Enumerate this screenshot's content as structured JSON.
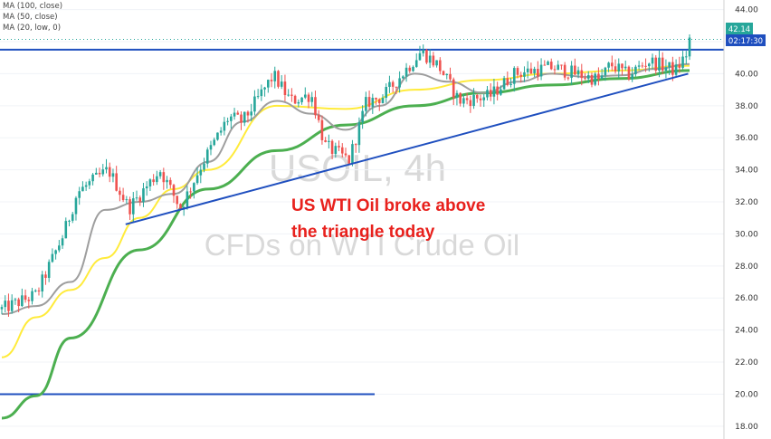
{
  "legend": [
    "MA (100, close)",
    "MA (50, close)",
    "MA (20, low, 0)"
  ],
  "watermark": {
    "symbol": "USOIL, 4h",
    "description": "CFDs on WTI Crude Oil"
  },
  "annotation": {
    "line1": "US WTI Oil broke above",
    "line2": "the triangle today"
  },
  "price_labels": {
    "last_price": "42.14",
    "countdown": "02:17:30"
  },
  "colors": {
    "up_candle": "#26a69a",
    "down_candle": "#ef5350",
    "ma100": "#4caf50",
    "ma50": "#ffeb3b",
    "ma20": "#9e9e9e",
    "trendline": "#1f4fbf",
    "annotation": "#e8211d",
    "axis_badge": "#1f4fbf"
  },
  "chart_data": {
    "type": "candlestick",
    "symbol": "USOIL",
    "timeframe": "4h",
    "ylim": [
      17.2,
      44.6
    ],
    "y_ticks": [
      "18.00",
      "20.00",
      "22.00",
      "24.00",
      "26.00",
      "28.00",
      "30.00",
      "32.00",
      "34.00",
      "36.00",
      "38.00",
      "40.00",
      "42.00",
      "44.00"
    ],
    "horizontal_levels": [
      {
        "name": "resistance",
        "value": 41.5,
        "x_range": [
          0,
          1
        ]
      },
      {
        "name": "support",
        "value": 20.0,
        "x_range": [
          0,
          0.56
        ]
      }
    ],
    "trendline": {
      "from": {
        "x": 0.18,
        "y": 30.6
      },
      "to": {
        "x": 0.998,
        "y": 40.0
      }
    },
    "guide_points": [
      {
        "x": 0.0,
        "y": 25.3
      },
      {
        "x": 0.05,
        "y": 26.2
      },
      {
        "x": 0.09,
        "y": 30.0
      },
      {
        "x": 0.11,
        "y": 32.6
      },
      {
        "x": 0.155,
        "y": 34.0
      },
      {
        "x": 0.185,
        "y": 31.6
      },
      {
        "x": 0.23,
        "y": 34.0
      },
      {
        "x": 0.26,
        "y": 31.6
      },
      {
        "x": 0.29,
        "y": 34.3
      },
      {
        "x": 0.33,
        "y": 37.3
      },
      {
        "x": 0.35,
        "y": 37.0
      },
      {
        "x": 0.395,
        "y": 39.9
      },
      {
        "x": 0.42,
        "y": 38.3
      },
      {
        "x": 0.45,
        "y": 38.7
      },
      {
        "x": 0.47,
        "y": 35.5
      },
      {
        "x": 0.505,
        "y": 34.6
      },
      {
        "x": 0.53,
        "y": 38.2
      },
      {
        "x": 0.555,
        "y": 38.6
      },
      {
        "x": 0.61,
        "y": 41.4
      },
      {
        "x": 0.635,
        "y": 40.5
      },
      {
        "x": 0.665,
        "y": 38.3
      },
      {
        "x": 0.71,
        "y": 38.6
      },
      {
        "x": 0.745,
        "y": 40.0
      },
      {
        "x": 0.8,
        "y": 40.4
      },
      {
        "x": 0.87,
        "y": 39.6
      },
      {
        "x": 0.885,
        "y": 40.6
      },
      {
        "x": 0.91,
        "y": 39.9
      },
      {
        "x": 0.94,
        "y": 40.8
      },
      {
        "x": 0.98,
        "y": 40.2
      },
      {
        "x": 0.995,
        "y": 41.2
      },
      {
        "x": 1.0,
        "y": 42.14
      }
    ],
    "candle_count": 205,
    "moving_averages": [
      {
        "name": "MA (100, close)",
        "color": "#4caf50",
        "points": [
          [
            0.0,
            18.5
          ],
          [
            0.05,
            19.9
          ],
          [
            0.1,
            23.5
          ],
          [
            0.2,
            29.0
          ],
          [
            0.3,
            32.8
          ],
          [
            0.4,
            35.2
          ],
          [
            0.5,
            36.8
          ],
          [
            0.6,
            38.0
          ],
          [
            0.7,
            38.8
          ],
          [
            0.8,
            39.3
          ],
          [
            0.9,
            39.7
          ],
          [
            1.0,
            40.2
          ]
        ]
      },
      {
        "name": "MA (50, close)",
        "color": "#ffeb3b",
        "points": [
          [
            0.0,
            22.3
          ],
          [
            0.05,
            24.8
          ],
          [
            0.1,
            26.5
          ],
          [
            0.15,
            28.5
          ],
          [
            0.2,
            31.0
          ],
          [
            0.25,
            32.8
          ],
          [
            0.3,
            34.0
          ],
          [
            0.4,
            38.0
          ],
          [
            0.5,
            37.8
          ],
          [
            0.6,
            39.0
          ],
          [
            0.7,
            39.6
          ],
          [
            0.8,
            40.0
          ],
          [
            0.9,
            40.2
          ],
          [
            1.0,
            40.5
          ]
        ]
      },
      {
        "name": "MA (20, low, 0)",
        "color": "#9e9e9e",
        "points": [
          [
            0.0,
            25.0
          ],
          [
            0.05,
            25.5
          ],
          [
            0.1,
            27.0
          ],
          [
            0.15,
            31.5
          ],
          [
            0.2,
            32.0
          ],
          [
            0.25,
            32.5
          ],
          [
            0.3,
            34.5
          ],
          [
            0.35,
            37.0
          ],
          [
            0.4,
            38.3
          ],
          [
            0.45,
            37.5
          ],
          [
            0.5,
            36.5
          ],
          [
            0.55,
            38.0
          ],
          [
            0.6,
            40.0
          ],
          [
            0.65,
            39.5
          ],
          [
            0.7,
            38.8
          ],
          [
            0.75,
            39.5
          ],
          [
            0.8,
            40.0
          ],
          [
            0.85,
            39.8
          ],
          [
            0.9,
            39.9
          ],
          [
            0.95,
            40.3
          ],
          [
            1.0,
            40.6
          ]
        ]
      }
    ]
  }
}
